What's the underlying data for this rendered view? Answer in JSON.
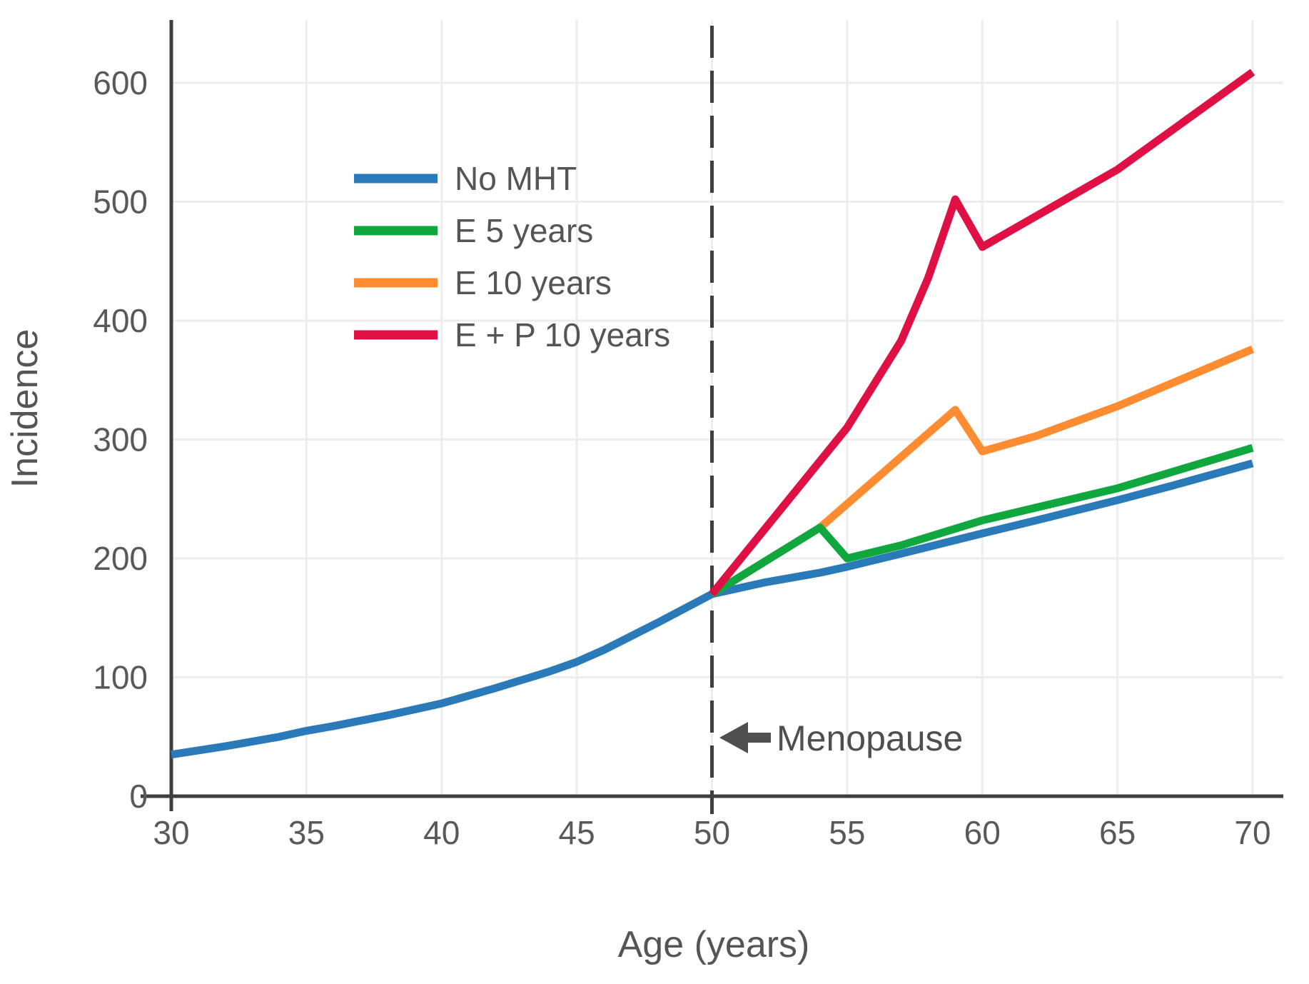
{
  "figure": {
    "background": "#ffffff"
  },
  "chart_data": {
    "type": "line",
    "title": "",
    "xlabel": "Age (years)",
    "ylabel": "Incidence",
    "xlim": [
      30,
      70
    ],
    "ylim": [
      0,
      650
    ],
    "xticks": [
      30,
      35,
      40,
      45,
      50,
      55,
      60,
      65,
      70
    ],
    "yticks": [
      0,
      100,
      200,
      300,
      400,
      500,
      600
    ],
    "grid": true,
    "legend_position": "upper-left",
    "reference_line": {
      "axis": "x",
      "value": 50,
      "style": "dashed",
      "color": "#3f3f3f"
    },
    "annotation": {
      "text": "Menopause",
      "x": 50,
      "y": 48,
      "arrow": "left"
    },
    "series": [
      {
        "name": "No MHT",
        "color": "#2a7ab9",
        "points": [
          [
            30,
            35
          ],
          [
            32,
            42
          ],
          [
            34,
            50
          ],
          [
            35,
            55
          ],
          [
            36,
            59
          ],
          [
            38,
            68
          ],
          [
            40,
            78
          ],
          [
            42,
            91
          ],
          [
            44,
            105
          ],
          [
            45,
            113
          ],
          [
            46,
            123
          ],
          [
            48,
            146
          ],
          [
            50,
            170
          ],
          [
            51,
            175
          ],
          [
            52,
            180
          ],
          [
            54,
            188
          ],
          [
            55,
            193
          ],
          [
            57,
            204
          ],
          [
            60,
            221
          ],
          [
            62,
            232
          ],
          [
            65,
            249
          ],
          [
            67,
            261
          ],
          [
            70,
            280
          ]
        ]
      },
      {
        "name": "E 5 years",
        "color": "#0fa73e",
        "points": [
          [
            50,
            170
          ],
          [
            54,
            226
          ],
          [
            55,
            200
          ],
          [
            57,
            211
          ],
          [
            60,
            232
          ],
          [
            65,
            259
          ],
          [
            70,
            293
          ]
        ]
      },
      {
        "name": "E 10 years",
        "color": "#ff8c30",
        "points": [
          [
            50,
            170
          ],
          [
            54,
            226
          ],
          [
            59,
            325
          ],
          [
            60,
            290
          ],
          [
            62,
            303
          ],
          [
            65,
            328
          ],
          [
            70,
            376
          ]
        ]
      },
      {
        "name": "E + P 10 years",
        "color": "#df1144",
        "points": [
          [
            50,
            170
          ],
          [
            55,
            310
          ],
          [
            57,
            383
          ],
          [
            58,
            436
          ],
          [
            59,
            502
          ],
          [
            60,
            462
          ],
          [
            65,
            527
          ],
          [
            70,
            609
          ]
        ]
      }
    ],
    "draw_order": [
      0,
      2,
      1,
      3
    ],
    "style": {
      "gridline_color": "#ededed",
      "spine_color": "#3f3f3f",
      "tick_label_color": "#595959",
      "axis_title_color": "#555555",
      "annotation_color": "#4f4f4f",
      "legend_text_color": "#555555"
    }
  }
}
